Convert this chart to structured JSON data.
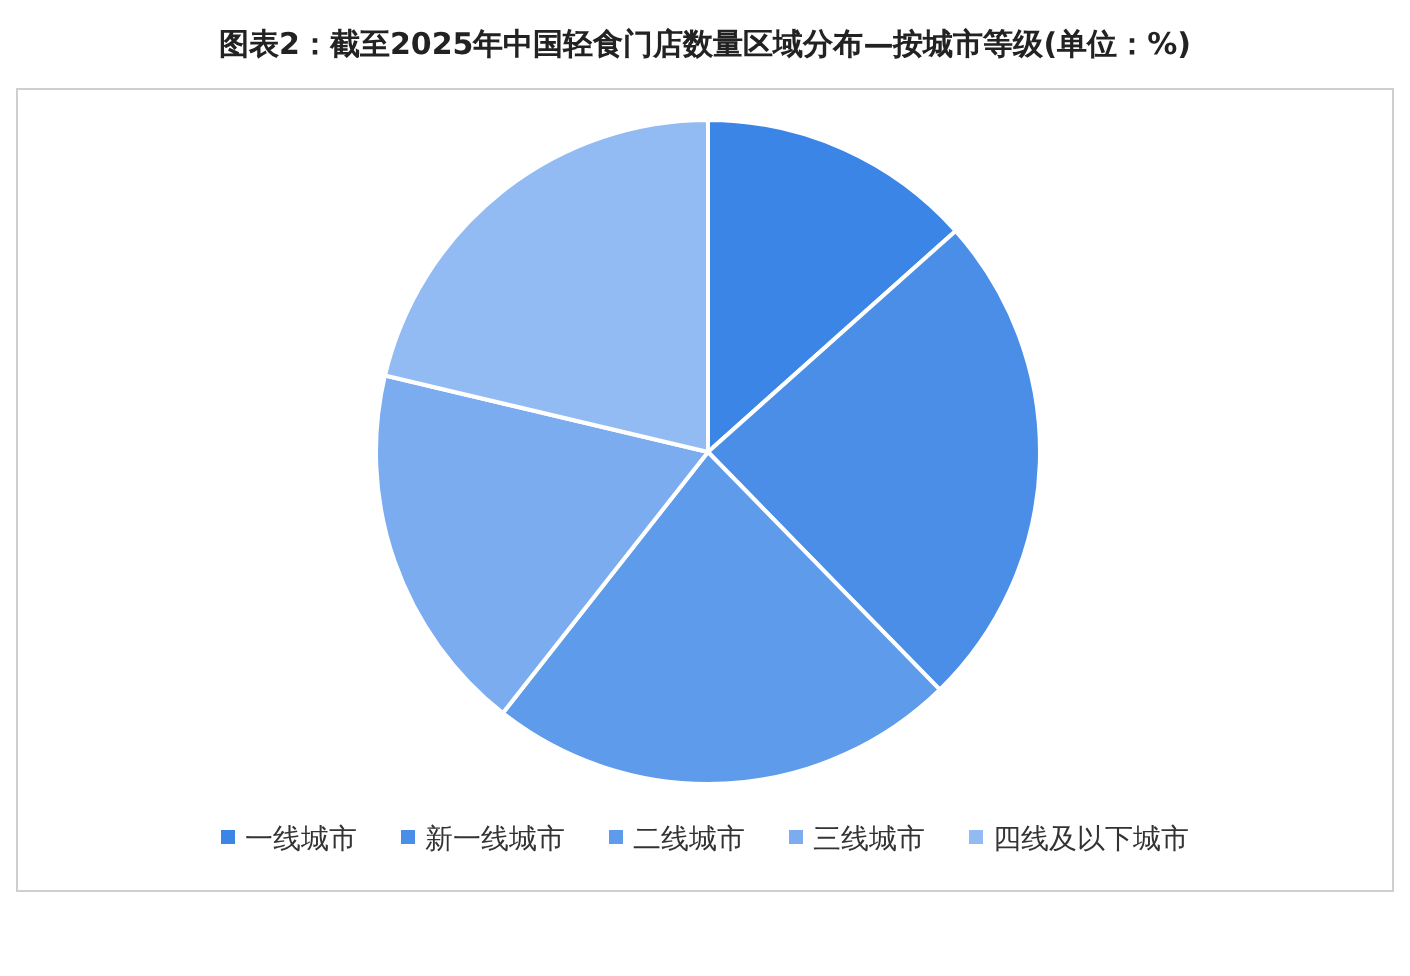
{
  "chart_data": {
    "type": "pie",
    "title": "图表2：截至2025年中国轻食门店数量区域分布—按城市等级(单位：%)",
    "categories": [
      "一线城市",
      "新一线城市",
      "二线城市",
      "三线城市",
      "四线及以下城市"
    ],
    "values": [
      13.4,
      24.3,
      22.9,
      18.1,
      21.3
    ],
    "colors": [
      "#3a85e6",
      "#4a8ee8",
      "#5f9beb",
      "#7aacef",
      "#93bbf3"
    ],
    "legend": "bottom"
  }
}
